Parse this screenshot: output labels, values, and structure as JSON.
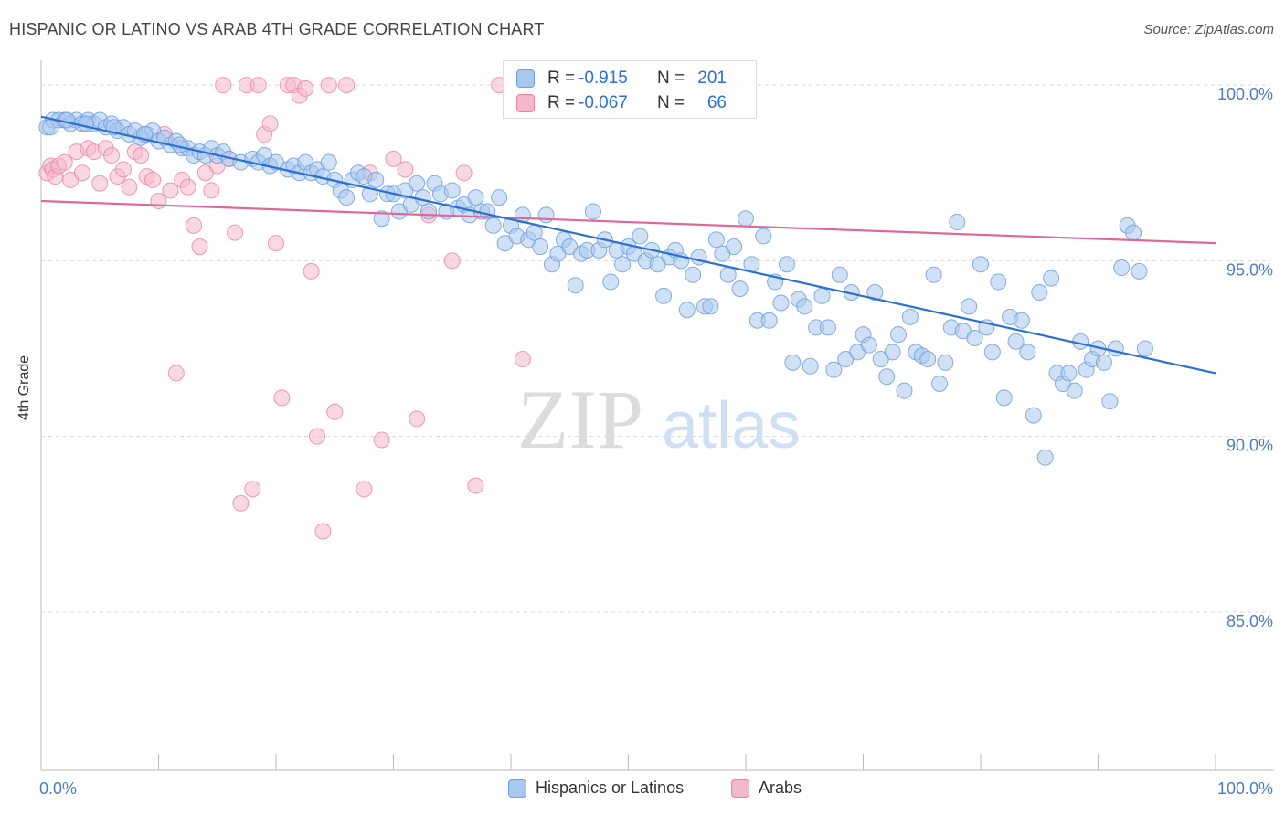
{
  "title": "HISPANIC OR LATINO VS ARAB 4TH GRADE CORRELATION CHART",
  "source": "Source: ZipAtlas.com",
  "watermark": {
    "zip": "ZIP",
    "atlas": "atlas"
  },
  "legend": {
    "rows": [
      {
        "r_label": "R =",
        "r_value": "-0.915",
        "n_label": "N =",
        "n_value": "201"
      },
      {
        "r_label": "R =",
        "r_value": "-0.067",
        "n_label": "N =",
        "n_value": "66"
      }
    ]
  },
  "bottom_legend": [
    "Hispanics or Latinos",
    "Arabs"
  ],
  "colors": {
    "blue_fill": "#a9c8ef",
    "blue_stroke": "#6f9fdd",
    "blue_line": "#2b6fd1",
    "pink_fill": "#f5b8cb",
    "pink_stroke": "#e9829f",
    "pink_line": "#e0679a",
    "tick_text": "#4a7cc9",
    "grid": "#d8d8d8"
  },
  "chart_data": {
    "type": "scatter",
    "title": "HISPANIC OR LATINO VS ARAB 4TH GRADE CORRELATION CHART",
    "xlabel": "",
    "ylabel": "4th Grade",
    "xlim": [
      0,
      100
    ],
    "ylim": [
      80.5,
      100.6
    ],
    "x_tick_labels": [
      "0.0%",
      "100.0%"
    ],
    "y_ticks": [
      85,
      90,
      95,
      100
    ],
    "y_tick_labels": [
      "85.0%",
      "90.0%",
      "95.0%",
      "100.0%"
    ],
    "grid": true,
    "legend_position": "top-center",
    "series": [
      {
        "name": "Hispanics or Latinos",
        "r": -0.915,
        "n": 201,
        "trend": {
          "x": [
            0,
            100
          ],
          "y": [
            99.1,
            91.8
          ]
        },
        "points": [
          [
            0.5,
            98.8
          ],
          [
            1,
            99
          ],
          [
            1.5,
            99
          ],
          [
            2,
            99
          ],
          [
            2.5,
            98.9
          ],
          [
            3,
            99
          ],
          [
            3.5,
            98.9
          ],
          [
            4,
            99
          ],
          [
            4.5,
            98.9
          ],
          [
            5,
            99
          ],
          [
            5.5,
            98.8
          ],
          [
            6,
            98.9
          ],
          [
            6.5,
            98.7
          ],
          [
            7,
            98.8
          ],
          [
            7.5,
            98.6
          ],
          [
            8,
            98.7
          ],
          [
            8.5,
            98.5
          ],
          [
            9,
            98.6
          ],
          [
            9.5,
            98.7
          ],
          [
            10,
            98.4
          ],
          [
            10.5,
            98.5
          ],
          [
            11,
            98.3
          ],
          [
            11.5,
            98.4
          ],
          [
            12,
            98.2
          ],
          [
            12.5,
            98.2
          ],
          [
            13,
            98
          ],
          [
            13.5,
            98.1
          ],
          [
            14,
            98
          ],
          [
            14.5,
            98.2
          ],
          [
            15,
            98
          ],
          [
            15.5,
            98.1
          ],
          [
            16,
            97.9
          ],
          [
            17,
            97.8
          ],
          [
            18,
            97.9
          ],
          [
            18.5,
            97.8
          ],
          [
            19,
            98
          ],
          [
            19.5,
            97.7
          ],
          [
            20,
            97.8
          ],
          [
            21,
            97.6
          ],
          [
            21.5,
            97.7
          ],
          [
            22,
            97.5
          ],
          [
            22.5,
            97.8
          ],
          [
            23,
            97.5
          ],
          [
            23.5,
            97.6
          ],
          [
            24,
            97.4
          ],
          [
            24.5,
            97.8
          ],
          [
            25,
            97.3
          ],
          [
            25.5,
            97
          ],
          [
            26,
            96.8
          ],
          [
            26.5,
            97.3
          ],
          [
            27,
            97.5
          ],
          [
            27.5,
            97.4
          ],
          [
            28,
            96.9
          ],
          [
            28.5,
            97.3
          ],
          [
            29,
            96.2
          ],
          [
            29.5,
            96.9
          ],
          [
            30,
            96.9
          ],
          [
            30.5,
            96.4
          ],
          [
            31,
            97
          ],
          [
            31.5,
            96.6
          ],
          [
            32,
            97.2
          ],
          [
            32.5,
            96.8
          ],
          [
            33,
            96.4
          ],
          [
            33.5,
            97.2
          ],
          [
            34,
            96.9
          ],
          [
            34.5,
            96.4
          ],
          [
            35,
            97
          ],
          [
            35.5,
            96.5
          ],
          [
            36,
            96.6
          ],
          [
            36.5,
            96.3
          ],
          [
            37,
            96.8
          ],
          [
            37.5,
            96.4
          ],
          [
            38,
            96.4
          ],
          [
            38.5,
            96
          ],
          [
            39,
            96.8
          ],
          [
            39.5,
            95.5
          ],
          [
            40,
            96
          ],
          [
            40.5,
            95.7
          ],
          [
            41,
            96.3
          ],
          [
            41.5,
            95.6
          ],
          [
            42,
            95.8
          ],
          [
            42.5,
            95.4
          ],
          [
            43,
            96.3
          ],
          [
            43.5,
            94.9
          ],
          [
            44,
            95.2
          ],
          [
            44.5,
            95.6
          ],
          [
            45,
            95.4
          ],
          [
            45.5,
            94.3
          ],
          [
            46,
            95.2
          ],
          [
            46.5,
            95.3
          ],
          [
            47,
            96.4
          ],
          [
            47.5,
            95.3
          ],
          [
            48,
            95.6
          ],
          [
            48.5,
            94.4
          ],
          [
            49,
            95.3
          ],
          [
            49.5,
            94.9
          ],
          [
            50,
            95.4
          ],
          [
            50.5,
            95.2
          ],
          [
            51,
            95.7
          ],
          [
            51.5,
            95
          ],
          [
            52,
            95.3
          ],
          [
            52.5,
            94.9
          ],
          [
            53,
            94
          ],
          [
            53.5,
            95.1
          ],
          [
            54,
            95.3
          ],
          [
            54.5,
            95
          ],
          [
            55,
            93.6
          ],
          [
            55.5,
            94.6
          ],
          [
            56,
            95.1
          ],
          [
            56.5,
            93.7
          ],
          [
            57,
            93.7
          ],
          [
            57.5,
            95.6
          ],
          [
            58,
            95.2
          ],
          [
            58.5,
            94.6
          ],
          [
            59,
            95.4
          ],
          [
            59.5,
            94.2
          ],
          [
            60,
            96.2
          ],
          [
            60.5,
            94.9
          ],
          [
            61,
            93.3
          ],
          [
            61.5,
            95.7
          ],
          [
            62,
            93.3
          ],
          [
            62.5,
            94.4
          ],
          [
            63,
            93.8
          ],
          [
            63.5,
            94.9
          ],
          [
            64,
            92.1
          ],
          [
            64.5,
            93.9
          ],
          [
            65,
            93.7
          ],
          [
            65.5,
            92
          ],
          [
            66,
            93.1
          ],
          [
            66.5,
            94
          ],
          [
            67,
            93.1
          ],
          [
            67.5,
            91.9
          ],
          [
            68,
            94.6
          ],
          [
            68.5,
            92.2
          ],
          [
            69,
            94.1
          ],
          [
            69.5,
            92.4
          ],
          [
            70,
            92.9
          ],
          [
            70.5,
            92.6
          ],
          [
            71,
            94.1
          ],
          [
            71.5,
            92.2
          ],
          [
            72,
            91.7
          ],
          [
            72.5,
            92.4
          ],
          [
            73,
            92.9
          ],
          [
            73.5,
            91.3
          ],
          [
            74,
            93.4
          ],
          [
            74.5,
            92.4
          ],
          [
            75,
            92.3
          ],
          [
            75.5,
            92.2
          ],
          [
            76,
            94.6
          ],
          [
            76.5,
            91.5
          ],
          [
            77,
            92.1
          ],
          [
            77.5,
            93.1
          ],
          [
            78,
            96.1
          ],
          [
            78.5,
            93
          ],
          [
            79,
            93.7
          ],
          [
            79.5,
            92.8
          ],
          [
            80,
            94.9
          ],
          [
            80.5,
            93.1
          ],
          [
            81,
            92.4
          ],
          [
            81.5,
            94.4
          ],
          [
            82,
            91.1
          ],
          [
            82.5,
            93.4
          ],
          [
            83,
            92.7
          ],
          [
            83.5,
            93.3
          ],
          [
            84,
            92.4
          ],
          [
            84.5,
            90.6
          ],
          [
            85,
            94.1
          ],
          [
            85.5,
            89.4
          ],
          [
            86,
            94.5
          ],
          [
            86.5,
            91.8
          ],
          [
            87,
            91.5
          ],
          [
            87.5,
            91.8
          ],
          [
            88,
            91.3
          ],
          [
            88.5,
            92.7
          ],
          [
            89,
            91.9
          ],
          [
            89.5,
            92.2
          ],
          [
            90,
            92.5
          ],
          [
            90.5,
            92.1
          ],
          [
            91,
            91
          ],
          [
            91.5,
            92.5
          ],
          [
            92,
            94.8
          ],
          [
            92.5,
            96
          ],
          [
            93,
            95.8
          ],
          [
            93.5,
            94.7
          ],
          [
            94,
            92.5
          ],
          [
            0.8,
            98.8
          ],
          [
            2.2,
            99
          ],
          [
            3.8,
            98.9
          ],
          [
            6.2,
            98.8
          ],
          [
            8.8,
            98.6
          ],
          [
            11.8,
            98.3
          ]
        ]
      },
      {
        "name": "Arabs",
        "r": -0.067,
        "n": 66,
        "trend": {
          "x": [
            0,
            100
          ],
          "y": [
            96.7,
            95.5
          ]
        },
        "points": [
          [
            0.5,
            97.5
          ],
          [
            0.8,
            97.7
          ],
          [
            1,
            97.6
          ],
          [
            1.2,
            97.4
          ],
          [
            1.5,
            97.7
          ],
          [
            2,
            97.8
          ],
          [
            2.5,
            97.3
          ],
          [
            3,
            98.1
          ],
          [
            3.5,
            97.5
          ],
          [
            4,
            98.2
          ],
          [
            4.5,
            98.1
          ],
          [
            5,
            97.2
          ],
          [
            5.5,
            98.2
          ],
          [
            6,
            98
          ],
          [
            6.5,
            97.4
          ],
          [
            7,
            97.6
          ],
          [
            7.5,
            97.1
          ],
          [
            8,
            98.1
          ],
          [
            8.5,
            98
          ],
          [
            9,
            97.4
          ],
          [
            9.5,
            97.3
          ],
          [
            10,
            96.7
          ],
          [
            10.5,
            98.6
          ],
          [
            11,
            97
          ],
          [
            11.5,
            91.8
          ],
          [
            12,
            97.3
          ],
          [
            12.5,
            97.1
          ],
          [
            13,
            96
          ],
          [
            13.5,
            95.4
          ],
          [
            14,
            97.5
          ],
          [
            14.5,
            97
          ],
          [
            15,
            97.7
          ],
          [
            15.5,
            100
          ],
          [
            16,
            97.9
          ],
          [
            16.5,
            95.8
          ],
          [
            17,
            88.1
          ],
          [
            17.5,
            100
          ],
          [
            18,
            88.5
          ],
          [
            18.5,
            100
          ],
          [
            19,
            98.6
          ],
          [
            19.5,
            98.9
          ],
          [
            20,
            95.5
          ],
          [
            20.5,
            91.1
          ],
          [
            21,
            100
          ],
          [
            21.5,
            100
          ],
          [
            22,
            99.7
          ],
          [
            22.5,
            99.9
          ],
          [
            23,
            94.7
          ],
          [
            23.5,
            90
          ],
          [
            24,
            87.3
          ],
          [
            24.5,
            100
          ],
          [
            25,
            90.7
          ],
          [
            26,
            100
          ],
          [
            27.5,
            88.5
          ],
          [
            28,
            97.5
          ],
          [
            29,
            89.9
          ],
          [
            30,
            97.9
          ],
          [
            31,
            97.6
          ],
          [
            32,
            90.5
          ],
          [
            33,
            96.3
          ],
          [
            35,
            95
          ],
          [
            36,
            97.5
          ],
          [
            37,
            88.6
          ],
          [
            39,
            100
          ],
          [
            41,
            92.2
          ],
          [
            44,
            100
          ]
        ]
      }
    ]
  }
}
